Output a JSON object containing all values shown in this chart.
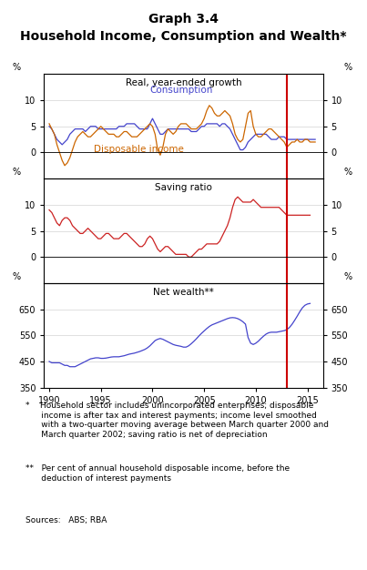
{
  "title1": "Graph 3.4",
  "title2": "Household Income, Consumption and Wealth*",
  "panel1_title": "Real, year-ended growth",
  "panel2_title": "Saving ratio",
  "panel3_title": "Net wealth**",
  "vertical_line_x": 2013.0,
  "xlabel_ticks": [
    1990,
    1995,
    2000,
    2005,
    2010,
    2015
  ],
  "panel1_ylim": [
    -5,
    15
  ],
  "panel1_yticks": [
    0,
    5,
    10
  ],
  "panel2_ylim": [
    -5,
    15
  ],
  "panel2_yticks": [
    0,
    5,
    10
  ],
  "panel3_ylim": [
    350,
    750
  ],
  "panel3_yticks": [
    350,
    450,
    550,
    650
  ],
  "consumption_color": "#4444cc",
  "income_color": "#cc6600",
  "saving_color": "#cc2222",
  "wealth_color": "#4444cc",
  "redline_color": "#cc0000",
  "footnote1": "*    Household sector includes unincorporated enterprises; disposable\n      income is after tax and interest payments; income level smoothed\n      with a two-quarter moving average between March quarter 2000 and\n      March quarter 2002; saving ratio is net of depreciation",
  "footnote2": "**   Per cent of annual household disposable income, before the\n      deduction of interest payments",
  "sources": "Sources:   ABS; RBA",
  "consumption_label": "Consumption",
  "income_label": "Disposable income",
  "consumption_x": [
    1990.0,
    1990.25,
    1990.5,
    1990.75,
    1991.0,
    1991.25,
    1991.5,
    1991.75,
    1992.0,
    1992.25,
    1992.5,
    1992.75,
    1993.0,
    1993.25,
    1993.5,
    1993.75,
    1994.0,
    1994.25,
    1994.5,
    1994.75,
    1995.0,
    1995.25,
    1995.5,
    1995.75,
    1996.0,
    1996.25,
    1996.5,
    1996.75,
    1997.0,
    1997.25,
    1997.5,
    1997.75,
    1998.0,
    1998.25,
    1998.5,
    1998.75,
    1999.0,
    1999.25,
    1999.5,
    1999.75,
    2000.0,
    2000.25,
    2000.5,
    2000.75,
    2001.0,
    2001.25,
    2001.5,
    2001.75,
    2002.0,
    2002.25,
    2002.5,
    2002.75,
    2003.0,
    2003.25,
    2003.5,
    2003.75,
    2004.0,
    2004.25,
    2004.5,
    2004.75,
    2005.0,
    2005.25,
    2005.5,
    2005.75,
    2006.0,
    2006.25,
    2006.5,
    2006.75,
    2007.0,
    2007.25,
    2007.5,
    2007.75,
    2008.0,
    2008.25,
    2008.5,
    2008.75,
    2009.0,
    2009.25,
    2009.5,
    2009.75,
    2010.0,
    2010.25,
    2010.5,
    2010.75,
    2011.0,
    2011.25,
    2011.5,
    2011.75,
    2012.0,
    2012.25,
    2012.5,
    2012.75,
    2013.0,
    2013.25,
    2013.5,
    2013.75,
    2014.0,
    2014.25,
    2014.5,
    2014.75,
    2015.0,
    2015.25,
    2015.5,
    2015.75
  ],
  "consumption_y": [
    5.0,
    4.5,
    3.5,
    2.5,
    2.0,
    1.5,
    2.0,
    2.5,
    3.5,
    4.0,
    4.5,
    4.5,
    4.5,
    4.5,
    4.0,
    4.5,
    5.0,
    5.0,
    5.0,
    4.5,
    4.5,
    4.5,
    4.5,
    4.5,
    4.5,
    4.5,
    4.5,
    5.0,
    5.0,
    5.0,
    5.5,
    5.5,
    5.5,
    5.5,
    5.0,
    4.5,
    4.5,
    4.5,
    4.5,
    5.5,
    6.5,
    5.5,
    4.5,
    3.5,
    3.5,
    4.0,
    4.5,
    4.5,
    4.5,
    4.5,
    4.5,
    4.5,
    4.5,
    4.5,
    4.5,
    4.0,
    4.0,
    4.0,
    4.5,
    5.0,
    5.0,
    5.5,
    5.5,
    5.5,
    5.5,
    5.5,
    5.0,
    5.5,
    5.5,
    5.0,
    4.5,
    3.5,
    2.5,
    1.5,
    0.5,
    0.5,
    1.0,
    2.0,
    2.5,
    3.0,
    3.5,
    3.5,
    3.5,
    3.5,
    3.5,
    3.0,
    2.5,
    2.5,
    2.5,
    3.0,
    3.0,
    3.0,
    2.5,
    2.5,
    2.5,
    2.5,
    2.5,
    2.5,
    2.5,
    2.5,
    2.5,
    2.5,
    2.5,
    2.5
  ],
  "income_x": [
    1990.0,
    1990.25,
    1990.5,
    1990.75,
    1991.0,
    1991.25,
    1991.5,
    1991.75,
    1992.0,
    1992.25,
    1992.5,
    1992.75,
    1993.0,
    1993.25,
    1993.5,
    1993.75,
    1994.0,
    1994.25,
    1994.5,
    1994.75,
    1995.0,
    1995.25,
    1995.5,
    1995.75,
    1996.0,
    1996.25,
    1996.5,
    1996.75,
    1997.0,
    1997.25,
    1997.5,
    1997.75,
    1998.0,
    1998.25,
    1998.5,
    1998.75,
    1999.0,
    1999.25,
    1999.5,
    1999.75,
    2000.0,
    2000.25,
    2000.5,
    2000.75,
    2001.0,
    2001.25,
    2001.5,
    2001.75,
    2002.0,
    2002.25,
    2002.5,
    2002.75,
    2003.0,
    2003.25,
    2003.5,
    2003.75,
    2004.0,
    2004.25,
    2004.5,
    2004.75,
    2005.0,
    2005.25,
    2005.5,
    2005.75,
    2006.0,
    2006.25,
    2006.5,
    2006.75,
    2007.0,
    2007.25,
    2007.5,
    2007.75,
    2008.0,
    2008.25,
    2008.5,
    2008.75,
    2009.0,
    2009.25,
    2009.5,
    2009.75,
    2010.0,
    2010.25,
    2010.5,
    2010.75,
    2011.0,
    2011.25,
    2011.5,
    2011.75,
    2012.0,
    2012.25,
    2012.5,
    2012.75,
    2013.0,
    2013.25,
    2013.5,
    2013.75,
    2014.0,
    2014.25,
    2014.5,
    2014.75,
    2015.0,
    2015.25,
    2015.5,
    2015.75
  ],
  "income_y": [
    5.5,
    4.5,
    3.5,
    1.5,
    0.0,
    -1.5,
    -2.5,
    -2.0,
    -1.0,
    0.5,
    2.0,
    3.0,
    3.5,
    4.0,
    3.5,
    3.0,
    3.0,
    3.5,
    4.0,
    4.5,
    5.0,
    4.5,
    4.0,
    3.5,
    3.5,
    3.5,
    3.0,
    3.0,
    3.5,
    4.0,
    4.0,
    3.5,
    3.0,
    3.0,
    3.0,
    3.5,
    4.0,
    4.5,
    5.0,
    5.5,
    5.0,
    3.5,
    0.5,
    -0.5,
    1.0,
    3.5,
    4.5,
    4.0,
    3.5,
    4.0,
    5.0,
    5.5,
    5.5,
    5.5,
    5.0,
    4.5,
    4.5,
    4.5,
    5.0,
    5.5,
    6.5,
    8.0,
    9.0,
    8.5,
    7.5,
    7.0,
    7.0,
    7.5,
    8.0,
    7.5,
    7.0,
    5.5,
    3.5,
    2.5,
    2.0,
    2.5,
    5.0,
    7.5,
    8.0,
    5.0,
    3.5,
    3.0,
    3.0,
    3.5,
    4.0,
    4.5,
    4.5,
    4.0,
    3.5,
    3.0,
    2.5,
    2.0,
    1.0,
    1.5,
    2.0,
    2.0,
    2.5,
    2.0,
    2.0,
    2.5,
    2.5,
    2.0,
    2.0,
    2.0
  ],
  "saving_x": [
    1990.0,
    1990.25,
    1990.5,
    1990.75,
    1991.0,
    1991.25,
    1991.5,
    1991.75,
    1992.0,
    1992.25,
    1992.5,
    1992.75,
    1993.0,
    1993.25,
    1993.5,
    1993.75,
    1994.0,
    1994.25,
    1994.5,
    1994.75,
    1995.0,
    1995.25,
    1995.5,
    1995.75,
    1996.0,
    1996.25,
    1996.5,
    1996.75,
    1997.0,
    1997.25,
    1997.5,
    1997.75,
    1998.0,
    1998.25,
    1998.5,
    1998.75,
    1999.0,
    1999.25,
    1999.5,
    1999.75,
    2000.0,
    2000.25,
    2000.5,
    2000.75,
    2001.0,
    2001.25,
    2001.5,
    2001.75,
    2002.0,
    2002.25,
    2002.5,
    2002.75,
    2003.0,
    2003.25,
    2003.5,
    2003.75,
    2004.0,
    2004.25,
    2004.5,
    2004.75,
    2005.0,
    2005.25,
    2005.5,
    2005.75,
    2006.0,
    2006.25,
    2006.5,
    2006.75,
    2007.0,
    2007.25,
    2007.5,
    2007.75,
    2008.0,
    2008.25,
    2008.5,
    2008.75,
    2009.0,
    2009.25,
    2009.5,
    2009.75,
    2010.0,
    2010.25,
    2010.5,
    2010.75,
    2011.0,
    2011.25,
    2011.5,
    2011.75,
    2012.0,
    2012.25,
    2012.5,
    2012.75,
    2013.0,
    2013.25,
    2013.5,
    2013.75,
    2014.0,
    2014.25,
    2014.5,
    2014.75,
    2015.0,
    2015.25
  ],
  "saving_y": [
    9.0,
    8.5,
    7.5,
    6.5,
    6.0,
    7.0,
    7.5,
    7.5,
    7.0,
    6.0,
    5.5,
    5.0,
    4.5,
    4.5,
    5.0,
    5.5,
    5.0,
    4.5,
    4.0,
    3.5,
    3.5,
    4.0,
    4.5,
    4.5,
    4.0,
    3.5,
    3.5,
    3.5,
    4.0,
    4.5,
    4.5,
    4.0,
    3.5,
    3.0,
    2.5,
    2.0,
    2.0,
    2.5,
    3.5,
    4.0,
    3.5,
    2.5,
    1.5,
    1.0,
    1.5,
    2.0,
    2.0,
    1.5,
    1.0,
    0.5,
    0.5,
    0.5,
    0.5,
    0.5,
    0.0,
    0.0,
    0.5,
    1.0,
    1.5,
    1.5,
    2.0,
    2.5,
    2.5,
    2.5,
    2.5,
    2.5,
    3.0,
    4.0,
    5.0,
    6.0,
    7.5,
    9.5,
    11.0,
    11.5,
    11.0,
    10.5,
    10.5,
    10.5,
    10.5,
    11.0,
    10.5,
    10.0,
    9.5,
    9.5,
    9.5,
    9.5,
    9.5,
    9.5,
    9.5,
    9.5,
    9.0,
    8.5,
    8.0,
    8.0,
    8.0,
    8.0,
    8.0,
    8.0,
    8.0,
    8.0,
    8.0,
    8.0
  ],
  "wealth_x": [
    1990.0,
    1990.25,
    1990.5,
    1990.75,
    1991.0,
    1991.25,
    1991.5,
    1991.75,
    1992.0,
    1992.25,
    1992.5,
    1992.75,
    1993.0,
    1993.25,
    1993.5,
    1993.75,
    1994.0,
    1994.25,
    1994.5,
    1994.75,
    1995.0,
    1995.25,
    1995.5,
    1995.75,
    1996.0,
    1996.25,
    1996.5,
    1996.75,
    1997.0,
    1997.25,
    1997.5,
    1997.75,
    1998.0,
    1998.25,
    1998.5,
    1998.75,
    1999.0,
    1999.25,
    1999.5,
    1999.75,
    2000.0,
    2000.25,
    2000.5,
    2000.75,
    2001.0,
    2001.25,
    2001.5,
    2001.75,
    2002.0,
    2002.25,
    2002.5,
    2002.75,
    2003.0,
    2003.25,
    2003.5,
    2003.75,
    2004.0,
    2004.25,
    2004.5,
    2004.75,
    2005.0,
    2005.25,
    2005.5,
    2005.75,
    2006.0,
    2006.25,
    2006.5,
    2006.75,
    2007.0,
    2007.25,
    2007.5,
    2007.75,
    2008.0,
    2008.25,
    2008.5,
    2008.75,
    2009.0,
    2009.25,
    2009.5,
    2009.75,
    2010.0,
    2010.25,
    2010.5,
    2010.75,
    2011.0,
    2011.25,
    2011.5,
    2011.75,
    2012.0,
    2012.25,
    2012.5,
    2012.75,
    2013.0,
    2013.25,
    2013.5,
    2013.75,
    2014.0,
    2014.25,
    2014.5,
    2014.75,
    2015.0,
    2015.25
  ],
  "wealth_y": [
    450,
    445,
    445,
    445,
    445,
    440,
    435,
    435,
    430,
    430,
    430,
    435,
    440,
    445,
    450,
    455,
    460,
    462,
    464,
    464,
    462,
    462,
    463,
    465,
    467,
    468,
    468,
    468,
    470,
    472,
    475,
    478,
    480,
    482,
    485,
    488,
    492,
    496,
    502,
    510,
    520,
    530,
    535,
    538,
    535,
    530,
    525,
    520,
    515,
    512,
    510,
    508,
    505,
    505,
    510,
    518,
    527,
    537,
    548,
    558,
    567,
    576,
    584,
    590,
    594,
    598,
    602,
    606,
    610,
    614,
    617,
    618,
    617,
    614,
    609,
    602,
    593,
    542,
    520,
    515,
    520,
    528,
    538,
    547,
    555,
    560,
    562,
    562,
    562,
    564,
    566,
    568,
    572,
    580,
    592,
    607,
    623,
    640,
    655,
    665,
    670,
    672
  ]
}
